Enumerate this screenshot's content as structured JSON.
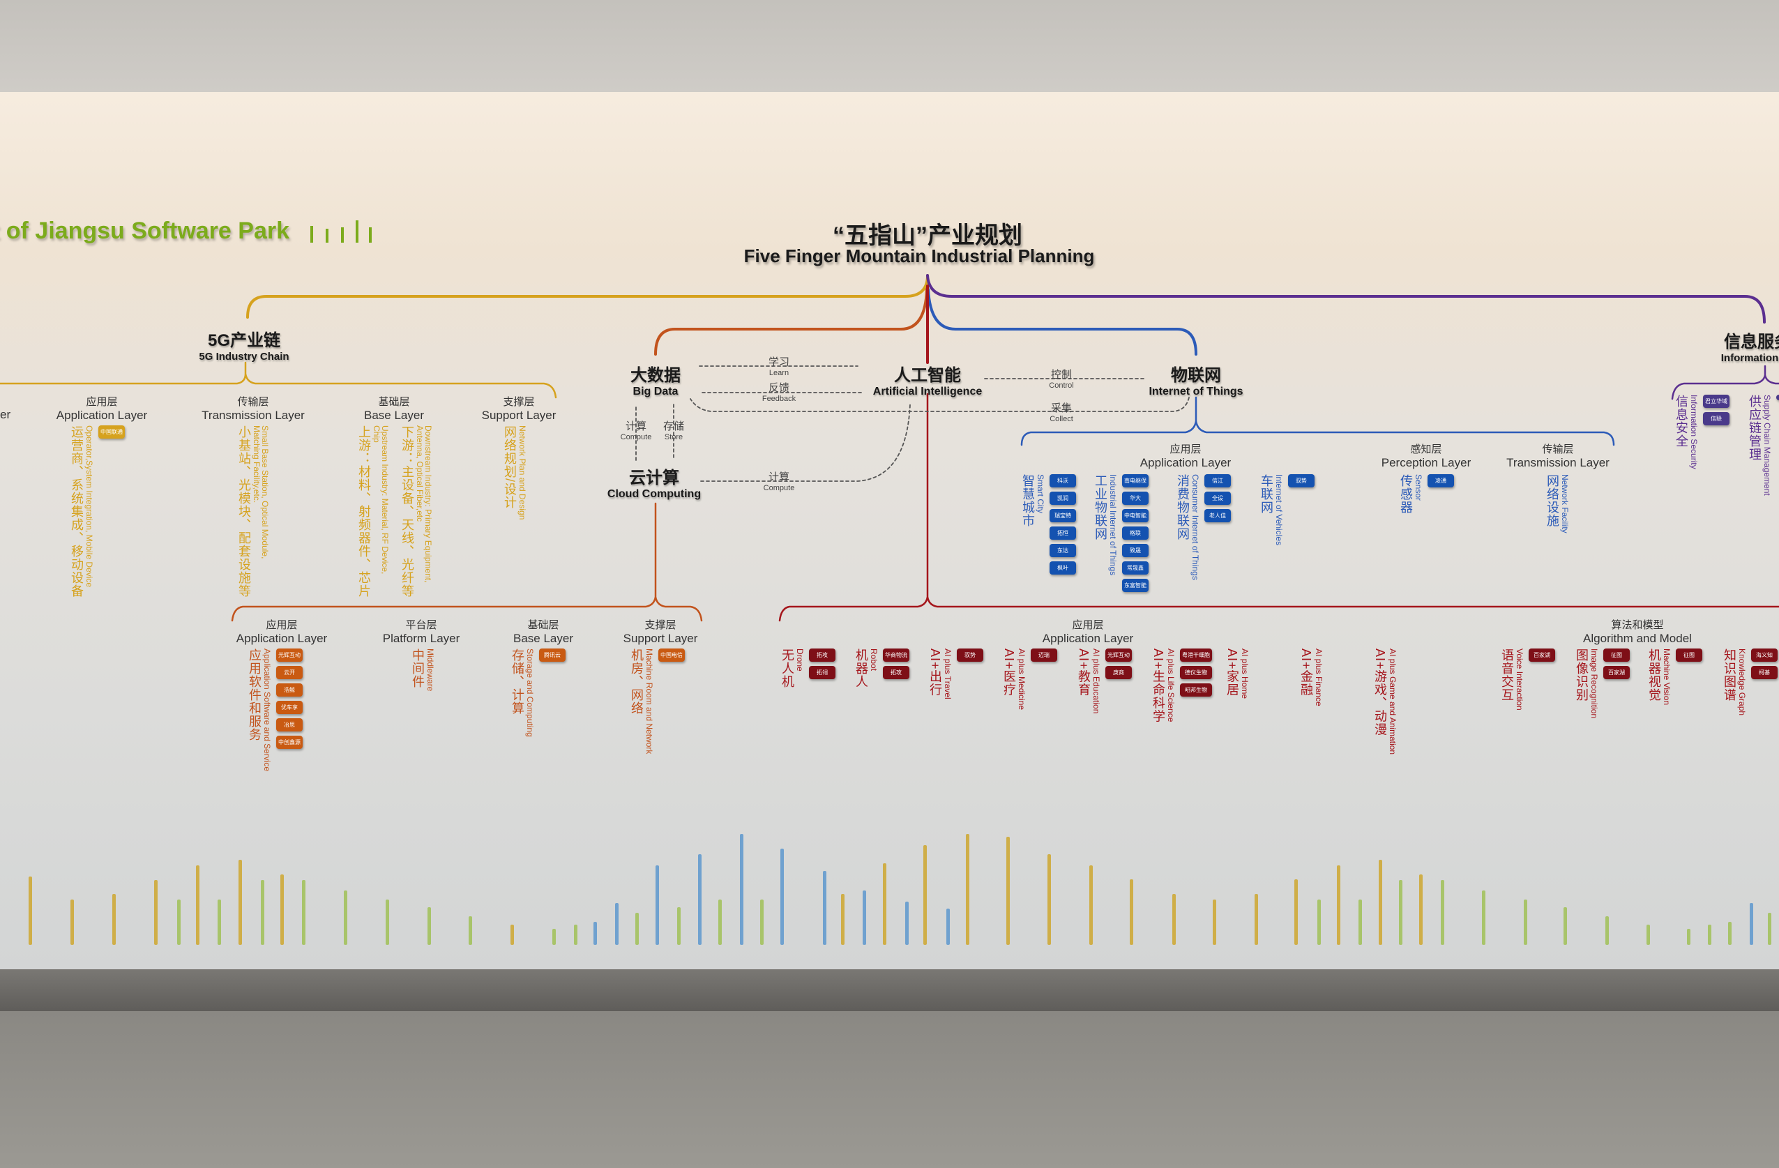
{
  "header_fragment": "t of Jiangsu Software Park",
  "title": {
    "cn": "“五指山”产业规划",
    "en": "Five Finger Mountain Industrial Planning"
  },
  "colors": {
    "g5": "#d6a21e",
    "bigdata": "#c2531d",
    "ai": "#a5161c",
    "iot": "#2c5bb8",
    "info": "#5b2f90",
    "park_green": "#7cab1c",
    "ai_tag": "#7e0f17",
    "iot_tag": "#1452b0",
    "cloud_tag": "#c95a12",
    "info_tag": "#4a3a8a"
  },
  "g5": {
    "cn": "5G产业链",
    "en": "5G Industry Chain",
    "cut_layer": "er",
    "layers": [
      {
        "cn": "应用层",
        "en": "Application Layer"
      },
      {
        "cn": "传输层",
        "en": "Transmission Layer"
      },
      {
        "cn": "基础层",
        "en": "Base Layer"
      },
      {
        "cn": "支撑层",
        "en": "Support Layer"
      }
    ],
    "items": [
      {
        "cn": "运营商、系统集成、移动设备",
        "en": "Operator,System Integration, Mobile Device",
        "tags": [
          "中国联通"
        ]
      },
      {
        "cn": "小基站、光模块、配套设施等",
        "en": "Small Base Station, Optical Module, Matching Facility,etc.",
        "tags": []
      },
      {
        "cn": "上游：材料、射频器件、芯片",
        "en": "Upstream Industry: Material, RF Device, Chip",
        "tags": []
      },
      {
        "cn": "下游：主设备、天线、光纤等",
        "en": "Downstream Industry: Primary Equipment, Antenna, Optical Fiber,etc",
        "tags": []
      },
      {
        "cn": "网络规划/设计",
        "en": "Network Plan and Design",
        "tags": []
      }
    ]
  },
  "bigdata": {
    "cn": "大数据",
    "en": "Big Data"
  },
  "ai": {
    "cn": "人工智能",
    "en": "Artificial Intelligence",
    "layers": [
      {
        "cn": "应用层",
        "en": "Application Layer"
      },
      {
        "cn": "算法和模型",
        "en": "Algorithm and Model"
      }
    ],
    "items": [
      {
        "cn": "无人机",
        "en": "Drone",
        "tags": [
          "拓攻",
          "拓翎"
        ]
      },
      {
        "cn": "机器人",
        "en": "Robot",
        "tags": [
          "华商物流",
          "拓攻"
        ]
      },
      {
        "cn": "AI+出行",
        "en": "AI plus Travel",
        "tags": [
          "驭势"
        ]
      },
      {
        "cn": "AI+医疗",
        "en": "AI plus Medicine",
        "tags": [
          "迈瑞"
        ]
      },
      {
        "cn": "AI+教育",
        "en": "AI plus Education",
        "tags": [
          "光辉互动",
          "庚商"
        ]
      },
      {
        "cn": "AI+生命科学",
        "en": "AI plus Life Science",
        "tags": [
          "粤港干细胞",
          "德仪生物",
          "昭邦生物"
        ]
      },
      {
        "cn": "AI+家居",
        "en": "AI plus Home",
        "tags": []
      },
      {
        "cn": "AI+金融",
        "en": "AI plus Finance",
        "tags": []
      },
      {
        "cn": "AI+游戏、动漫",
        "en": "AI plus Game and Animation",
        "tags": []
      },
      {
        "cn": "语音交互",
        "en": "Voice Interaction",
        "tags": [
          "百家湖"
        ]
      },
      {
        "cn": "图像识别",
        "en": "Image Recognition",
        "tags": [
          "征图",
          "百家湖"
        ]
      },
      {
        "cn": "机器视觉",
        "en": "Machine Vision",
        "tags": [
          "征图"
        ]
      },
      {
        "cn": "知识图谱",
        "en": "Knowledge Graph",
        "tags": [
          "海义知",
          "柯基"
        ]
      }
    ]
  },
  "iot": {
    "cn": "物联网",
    "en": "Internet of Things",
    "layers": [
      {
        "cn": "应用层",
        "en": "Application Layer"
      },
      {
        "cn": "感知层",
        "en": "Perception Layer"
      },
      {
        "cn": "传输层",
        "en": "Transmission Layer"
      }
    ],
    "items": [
      {
        "cn": "智慧城市",
        "en": "Smart City",
        "tags": [
          "科沃",
          "凯润",
          "瑞宝特",
          "拓恒",
          "东达",
          "枫叶"
        ]
      },
      {
        "cn": "工业物联网",
        "en": "Industrial Internet of Things",
        "tags": [
          "南电继保",
          "华大",
          "中电智能",
          "格联",
          "致晟",
          "常晟鑫",
          "东富智能"
        ]
      },
      {
        "cn": "消费物联网",
        "en": "Consumer Internet of Things",
        "tags": [
          "信江",
          "全设",
          "老人佳"
        ]
      },
      {
        "cn": "车联网",
        "en": "Internet of Vehicles",
        "tags": [
          "驭势"
        ]
      },
      {
        "cn": "传感器",
        "en": "Sensor",
        "tags": [
          "凌通"
        ]
      },
      {
        "cn": "网络设施",
        "en": "Network Facility",
        "tags": []
      }
    ]
  },
  "cloud": {
    "cn": "云计算",
    "en": "Cloud Computing",
    "layers": [
      {
        "cn": "应用层",
        "en": "Application Layer"
      },
      {
        "cn": "平台层",
        "en": "Platform Layer"
      },
      {
        "cn": "基础层",
        "en": "Base Layer"
      },
      {
        "cn": "支撑层",
        "en": "Support Layer"
      }
    ],
    "items": [
      {
        "cn": "应用软件和服务",
        "en": "Application Software and Service",
        "tags": [
          "光辉互动",
          "云开",
          "浩鲸",
          "优车享",
          "冶思",
          "中创鑫源"
        ]
      },
      {
        "cn": "中间件",
        "en": "Middleware",
        "tags": []
      },
      {
        "cn": "存储、计算",
        "en": "Storage and Computing",
        "tags": [
          "腾讯云"
        ]
      },
      {
        "cn": "机房、网络",
        "en": "Machine Room and Network",
        "tags": [
          "中国电信"
        ]
      }
    ]
  },
  "info": {
    "cn": "信息服务",
    "en": "Information",
    "items": [
      {
        "cn": "信息安全",
        "en": "Information Security",
        "tags": [
          "君立华域",
          "信联"
        ]
      },
      {
        "cn": "供应链管理",
        "en": "Supply Chain Management",
        "tags": [
          ""
        ]
      }
    ]
  },
  "relations": {
    "learn": {
      "cn": "学习",
      "en": "Learn"
    },
    "feedback": {
      "cn": "反馈",
      "en": "Feedback"
    },
    "control": {
      "cn": "控制",
      "en": "Control"
    },
    "collect": {
      "cn": "采集",
      "en": "Collect"
    },
    "compute": {
      "cn": "计算",
      "en": "Compute"
    },
    "store": {
      "cn": "存储",
      "en": "Store"
    },
    "cloud_compute": {
      "cn": "计算",
      "en": "Compute"
    }
  }
}
